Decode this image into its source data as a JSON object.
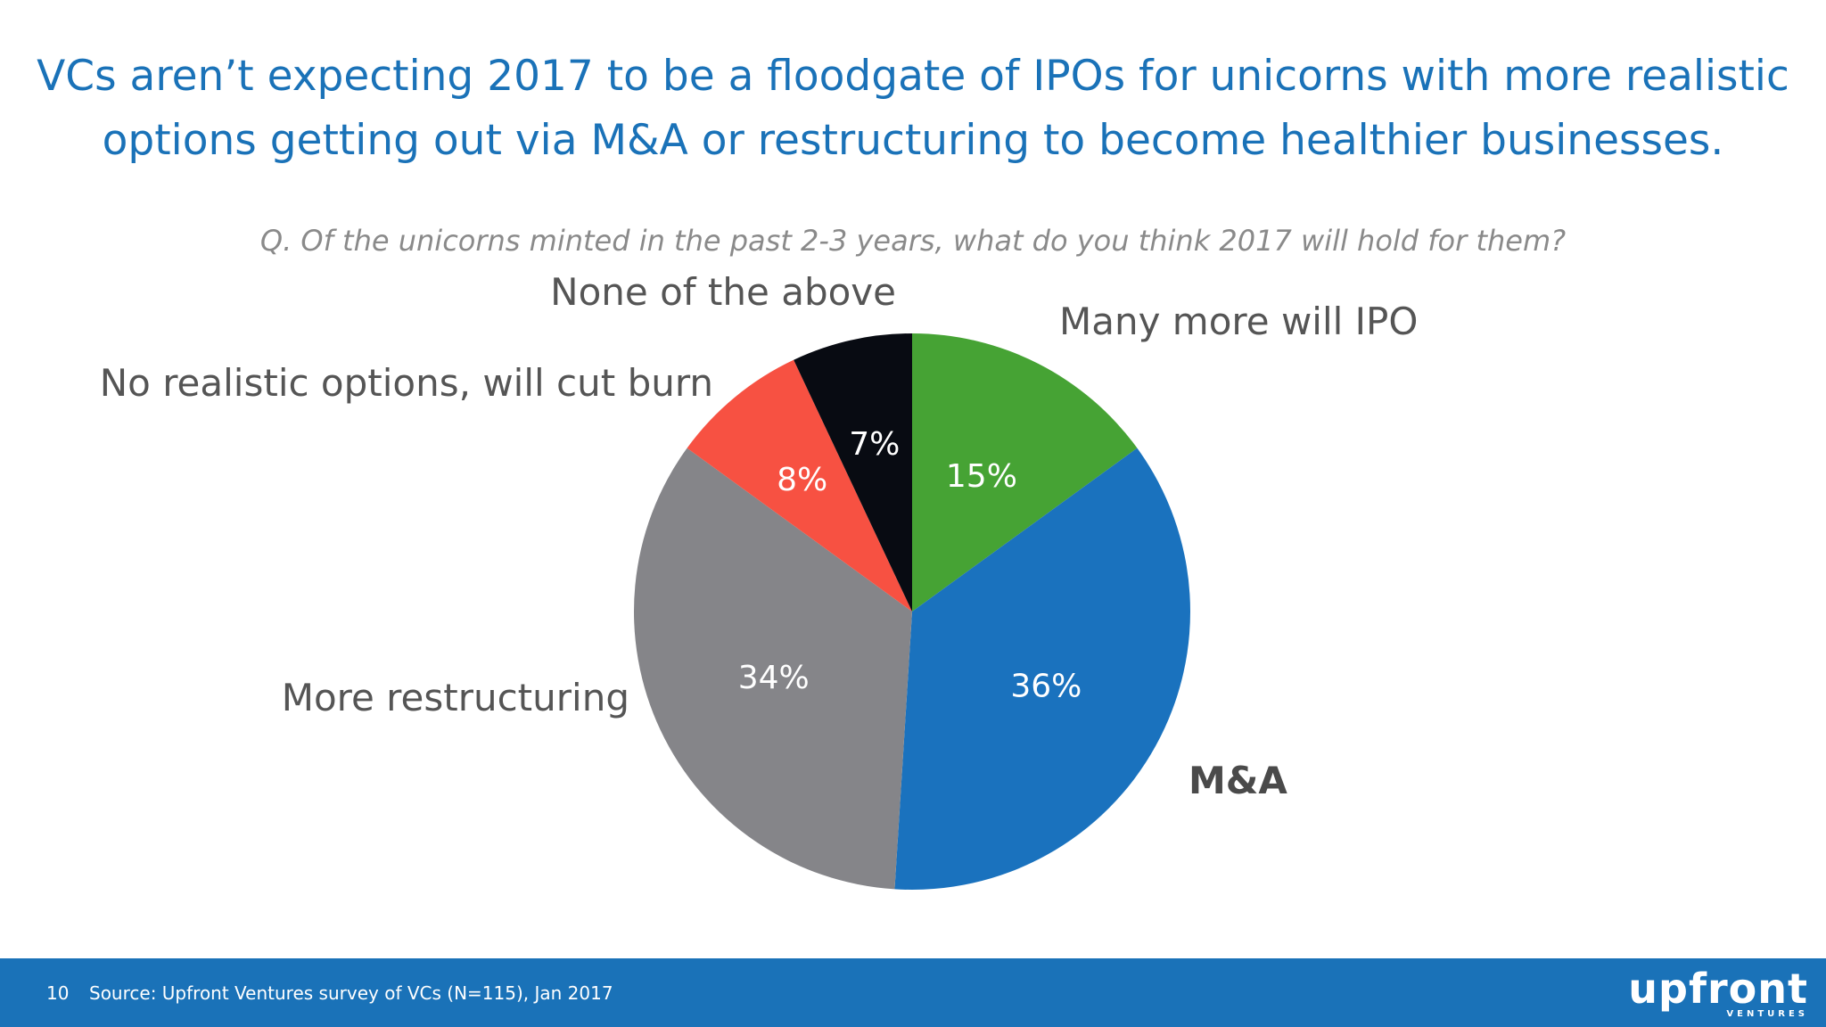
{
  "slide": {
    "title": "VCs aren’t expecting 2017 to be a floodgate of IPOs for unicorns with more realistic options getting out via M&A or restructuring to become healthier businesses.",
    "question": "Q. Of the unicorns minted in the past 2-3 years, what do you think 2017 will hold for them?"
  },
  "chart_data": {
    "type": "pie",
    "start_angle_deg": 0,
    "direction": "clockwise",
    "slices": [
      {
        "label": "Many more will IPO",
        "value": 15,
        "value_label": "15%",
        "color": "#46a334",
        "label_bold": false
      },
      {
        "label": "M&A",
        "value": 36,
        "value_label": "36%",
        "color": "#1a72be",
        "label_bold": true
      },
      {
        "label": "More restructuring",
        "value": 34,
        "value_label": "34%",
        "color": "#858589",
        "label_bold": false
      },
      {
        "label": "No realistic options, will cut burn",
        "value": 8,
        "value_label": "8%",
        "color": "#f75142",
        "label_bold": false
      },
      {
        "label": "None of the above",
        "value": 7,
        "value_label": "7%",
        "color": "#080b12",
        "label_bold": false
      }
    ]
  },
  "footer": {
    "page_number": "10",
    "source": "Source: Upfront Ventures survey of VCs (N=115), Jan 2017",
    "logo_text": "upfront",
    "logo_subtext": "VENTURES",
    "background_color": "#1a72b8"
  }
}
